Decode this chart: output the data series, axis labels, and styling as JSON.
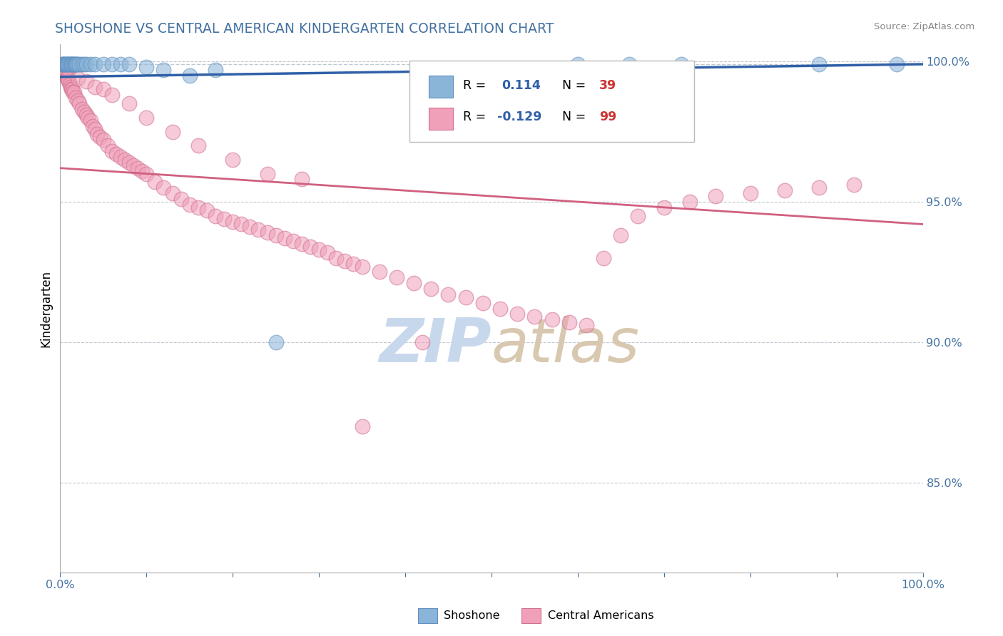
{
  "title": "SHOSHONE VS CENTRAL AMERICAN KINDERGARTEN CORRELATION CHART",
  "source_text": "Source: ZipAtlas.com",
  "ylabel": "Kindergarten",
  "xlim": [
    0.0,
    1.0
  ],
  "ylim": [
    0.818,
    1.006
  ],
  "ytick_values": [
    0.85,
    0.9,
    0.95,
    1.0
  ],
  "blue_color": "#8ab4d8",
  "blue_edge_color": "#6090c0",
  "pink_color": "#f0a0b8",
  "pink_edge_color": "#d07090",
  "blue_line_color": "#3060a8",
  "pink_line_color": "#d06080",
  "dashed_line_color": "#c0c8d0",
  "title_color": "#4472a0",
  "source_color": "#888888",
  "ytick_color": "#4472a0",
  "xtick_color": "#4472a0",
  "spine_color": "#aaaaaa",
  "watermark_zip_color": "#c8d8ec",
  "watermark_atlas_color": "#d8c8b0",
  "legend_bg": "#ffffff",
  "legend_edge": "#dddddd",
  "legend_R_color": "#3060a8",
  "legend_N_color": "#cc3333",
  "shoshone_x": [
    0.002,
    0.003,
    0.004,
    0.005,
    0.006,
    0.007,
    0.008,
    0.009,
    0.01,
    0.011,
    0.012,
    0.013,
    0.014,
    0.015,
    0.016,
    0.017,
    0.018,
    0.019,
    0.02,
    0.022,
    0.025,
    0.028,
    0.03,
    0.035,
    0.04,
    0.05,
    0.06,
    0.07,
    0.08,
    0.1,
    0.12,
    0.15,
    0.18,
    0.25,
    0.6,
    0.66,
    0.72,
    0.88,
    0.97
  ],
  "shoshone_y": [
    0.999,
    0.999,
    0.999,
    0.999,
    0.999,
    0.999,
    0.999,
    0.999,
    0.999,
    0.999,
    0.999,
    0.999,
    0.999,
    0.999,
    0.999,
    0.999,
    0.999,
    0.999,
    0.999,
    0.999,
    0.999,
    0.999,
    0.999,
    0.999,
    0.999,
    0.999,
    0.999,
    0.999,
    0.999,
    0.998,
    0.997,
    0.995,
    0.997,
    0.9,
    0.999,
    0.999,
    0.999,
    0.999,
    0.999
  ],
  "central_x": [
    0.002,
    0.003,
    0.004,
    0.005,
    0.006,
    0.007,
    0.008,
    0.009,
    0.01,
    0.011,
    0.012,
    0.013,
    0.014,
    0.015,
    0.016,
    0.018,
    0.02,
    0.022,
    0.025,
    0.028,
    0.03,
    0.032,
    0.035,
    0.038,
    0.04,
    0.043,
    0.046,
    0.05,
    0.055,
    0.06,
    0.065,
    0.07,
    0.075,
    0.08,
    0.085,
    0.09,
    0.095,
    0.1,
    0.11,
    0.12,
    0.13,
    0.14,
    0.15,
    0.16,
    0.17,
    0.18,
    0.19,
    0.2,
    0.21,
    0.22,
    0.23,
    0.24,
    0.25,
    0.26,
    0.27,
    0.28,
    0.29,
    0.3,
    0.31,
    0.32,
    0.33,
    0.34,
    0.35,
    0.37,
    0.39,
    0.41,
    0.43,
    0.45,
    0.47,
    0.49,
    0.51,
    0.53,
    0.55,
    0.57,
    0.59,
    0.61,
    0.63,
    0.65,
    0.67,
    0.7,
    0.73,
    0.76,
    0.8,
    0.84,
    0.88,
    0.92,
    0.01,
    0.02,
    0.03,
    0.04,
    0.05,
    0.06,
    0.08,
    0.1,
    0.13,
    0.16,
    0.2,
    0.24,
    0.28,
    0.35,
    0.42
  ],
  "central_y": [
    0.998,
    0.997,
    0.997,
    0.996,
    0.996,
    0.995,
    0.994,
    0.994,
    0.993,
    0.992,
    0.991,
    0.99,
    0.99,
    0.989,
    0.989,
    0.987,
    0.986,
    0.985,
    0.983,
    0.982,
    0.981,
    0.98,
    0.979,
    0.977,
    0.976,
    0.974,
    0.973,
    0.972,
    0.97,
    0.968,
    0.967,
    0.966,
    0.965,
    0.964,
    0.963,
    0.962,
    0.961,
    0.96,
    0.957,
    0.955,
    0.953,
    0.951,
    0.949,
    0.948,
    0.947,
    0.945,
    0.944,
    0.943,
    0.942,
    0.941,
    0.94,
    0.939,
    0.938,
    0.937,
    0.936,
    0.935,
    0.934,
    0.933,
    0.932,
    0.93,
    0.929,
    0.928,
    0.927,
    0.925,
    0.923,
    0.921,
    0.919,
    0.917,
    0.916,
    0.914,
    0.912,
    0.91,
    0.909,
    0.908,
    0.907,
    0.906,
    0.93,
    0.938,
    0.945,
    0.948,
    0.95,
    0.952,
    0.953,
    0.954,
    0.955,
    0.956,
    0.997,
    0.994,
    0.993,
    0.991,
    0.99,
    0.988,
    0.985,
    0.98,
    0.975,
    0.97,
    0.965,
    0.96,
    0.958,
    0.87,
    0.9
  ],
  "blue_trend_start_y": 0.9945,
  "blue_trend_end_y": 0.999,
  "pink_trend_start_y": 0.962,
  "pink_trend_end_y": 0.942
}
